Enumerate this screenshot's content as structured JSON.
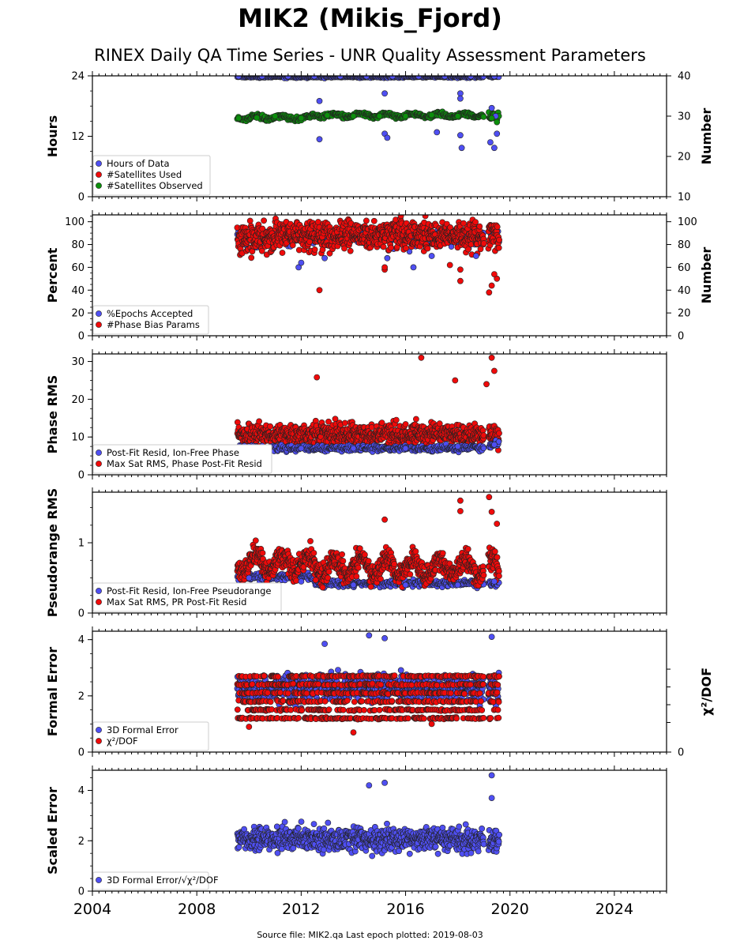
{
  "page": {
    "title": "MIK2 (Mikis_Fjord)",
    "subtitle": "RINEX Daily QA Time Series - UNR Quality Assessment Parameters",
    "footer": "Source file: MIK2.qa Last epoch plotted: 2019-08-03"
  },
  "colors": {
    "blue": "#4f4ff2",
    "red": "#ef0a0a",
    "green": "#0c8f0c",
    "edge": "#222222"
  },
  "chart_data": {
    "type": "scatter",
    "x_ticks": [
      2004,
      2008,
      2012,
      2016,
      2020,
      2024
    ],
    "xlim": [
      2004.0,
      2026.0
    ],
    "data_span": [
      2009.55,
      2019.59
    ],
    "panels": [
      {
        "ylabel": "Hours",
        "ylim": [
          0,
          24
        ],
        "yticks": [
          0,
          12,
          24
        ],
        "y2label": "Number",
        "y2lim": [
          10,
          40
        ],
        "y2ticks": [
          10,
          20,
          30,
          40
        ],
        "legend": [
          "Hours of Data",
          "#Satellites Used",
          "#Satellites Observed"
        ],
        "series": [
          {
            "name": "Hours of Data",
            "color": "blue",
            "axis": "y",
            "values": [
              [
                2009.6,
                23.9
              ],
              [
                2010.5,
                23.9
              ],
              [
                2011.5,
                23.9
              ],
              [
                2012.5,
                23.9
              ],
              [
                2013.5,
                23.9
              ],
              [
                2014.5,
                23.9
              ],
              [
                2015.5,
                23.9
              ],
              [
                2016.5,
                23.9
              ],
              [
                2017.5,
                23.9
              ],
              [
                2018.5,
                23.9
              ],
              [
                2019.4,
                23.9
              ],
              [
                2012.7,
                19.0
              ],
              [
                2012.7,
                11.4
              ],
              [
                2015.2,
                20.5
              ],
              [
                2015.2,
                12.5
              ],
              [
                2015.3,
                11.7
              ],
              [
                2017.2,
                12.8
              ],
              [
                2018.1,
                20.5
              ],
              [
                2018.1,
                19.5
              ],
              [
                2018.1,
                12.2
              ],
              [
                2018.15,
                9.7
              ],
              [
                2019.3,
                17.6
              ],
              [
                2019.25,
                10.8
              ],
              [
                2019.4,
                9.7
              ],
              [
                2019.5,
                12.5
              ],
              [
                2019.45,
                16.0
              ]
            ]
          },
          {
            "name": "#Satellites Used",
            "color": "red",
            "axis": "y2",
            "values": []
          },
          {
            "name": "#Satellites Observed",
            "color": "green",
            "axis": "y2",
            "values": [
              [
                2009.6,
                29.5
              ],
              [
                2010.3,
                29.6
              ],
              [
                2011.0,
                30.0
              ],
              [
                2012.0,
                29.5
              ],
              [
                2013.0,
                30.2
              ],
              [
                2014.0,
                30.0
              ],
              [
                2015.0,
                30.0
              ],
              [
                2016.0,
                30.0
              ],
              [
                2017.0,
                30.3
              ],
              [
                2018.0,
                30.0
              ],
              [
                2019.3,
                29.5
              ],
              [
                2019.5,
                28.5
              ]
            ]
          }
        ]
      },
      {
        "ylabel": "Percent",
        "ylim": [
          0,
          106
        ],
        "yticks": [
          0,
          20,
          40,
          60,
          80,
          100
        ],
        "y2label": "Number",
        "y2ticks": [
          0,
          20,
          40,
          60,
          80,
          100
        ],
        "legend": [
          "%Epochs Accepted",
          "#Phase Bias Params"
        ],
        "series": [
          {
            "name": "%Epochs Accepted",
            "color": "blue",
            "axis": "y",
            "values": [
              [
                2011.9,
                60
              ],
              [
                2012.0,
                64
              ],
              [
                2012.9,
                68
              ],
              [
                2015.3,
                68
              ],
              [
                2016.3,
                60
              ],
              [
                2017.0,
                70
              ],
              [
                2018.7,
                70
              ]
            ]
          },
          {
            "name": "#Phase Bias Params",
            "color": "red",
            "axis": "y2",
            "values": [
              [
                2012.7,
                40
              ],
              [
                2015.2,
                58
              ],
              [
                2015.2,
                60
              ],
              [
                2017.7,
                62
              ],
              [
                2018.1,
                58
              ],
              [
                2018.1,
                48
              ],
              [
                2019.2,
                38
              ],
              [
                2019.3,
                44
              ],
              [
                2019.5,
                50
              ],
              [
                2019.4,
                54
              ]
            ]
          }
        ]
      },
      {
        "ylabel": "Phase RMS",
        "ylim": [
          0,
          32
        ],
        "yticks": [
          0,
          10,
          20,
          30
        ],
        "legend": [
          "Post-Fit Resid, Ion-Free Phase",
          "Max Sat RMS, Phase Post-Fit Resid"
        ],
        "series": [
          {
            "name": "Post-Fit Resid, Ion-Free Phase",
            "color": "blue",
            "axis": "y",
            "values": [
              [
                2010,
                7.5
              ],
              [
                2012,
                7
              ],
              [
                2014,
                7
              ],
              [
                2016,
                7
              ],
              [
                2018,
                7.5
              ],
              [
                2019.4,
                8
              ]
            ]
          },
          {
            "name": "Max Sat RMS, Phase Post-Fit Resid",
            "color": "red",
            "axis": "y",
            "values": [
              [
                2012.6,
                25.8
              ],
              [
                2016.6,
                31
              ],
              [
                2017.9,
                25
              ],
              [
                2019.3,
                31
              ],
              [
                2019.4,
                27.5
              ],
              [
                2019.1,
                24
              ]
            ]
          }
        ]
      },
      {
        "ylabel": "Pseudorange RMS",
        "ylim": [
          0,
          1.72
        ],
        "yticks": [
          0,
          1
        ],
        "legend": [
          "Post-Fit Resid, Ion-Free Pseudorange",
          "Max Sat RMS, PR Post-Fit Resid"
        ],
        "series": [
          {
            "name": "Post-Fit Resid, Ion-Free Pseudorange",
            "color": "blue",
            "axis": "y",
            "values": [
              [
                2010,
                0.5
              ],
              [
                2012,
                0.45
              ],
              [
                2014,
                0.4
              ],
              [
                2016,
                0.4
              ],
              [
                2018,
                0.4
              ],
              [
                2019.4,
                0.45
              ]
            ]
          },
          {
            "name": "Max Sat RMS, PR Post-Fit Resid",
            "color": "red",
            "axis": "y",
            "values": [
              [
                2015.2,
                1.33
              ],
              [
                2018.1,
                1.6
              ],
              [
                2018.1,
                1.45
              ],
              [
                2019.2,
                1.65
              ],
              [
                2019.3,
                1.44
              ],
              [
                2019.5,
                1.27
              ]
            ]
          }
        ]
      },
      {
        "ylabel": "Formal Error",
        "ylim": [
          0,
          4.3
        ],
        "yticks": [
          0,
          2,
          4
        ],
        "y2label": "χ²/DOF",
        "y2ticks": [
          0
        ],
        "legend": [
          "3D Formal Error",
          "χ²/DOF"
        ],
        "series": [
          {
            "name": "3D Formal Error",
            "color": "blue",
            "axis": "y",
            "values": [
              [
                2014.6,
                4.15
              ],
              [
                2015.2,
                4.05
              ],
              [
                2012.9,
                3.85
              ],
              [
                2019.3,
                4.1
              ]
            ]
          },
          {
            "name": "χ²/DOF",
            "color": "red",
            "axis": "y",
            "values": [
              [
                2010.0,
                0.9
              ],
              [
                2014.0,
                0.7
              ],
              [
                2017.0,
                1.0
              ]
            ]
          }
        ]
      },
      {
        "ylabel": "Scaled Error",
        "ylim": [
          0,
          4.8
        ],
        "yticks": [
          0,
          2,
          4
        ],
        "legend": [
          "3D Formal Error/√χ²/DOF"
        ],
        "series": [
          {
            "name": "3D Formal Error/√χ²/DOF",
            "color": "blue",
            "axis": "y",
            "values": [
              [
                2014.6,
                4.2
              ],
              [
                2015.2,
                4.3
              ],
              [
                2019.3,
                4.6
              ],
              [
                2019.3,
                3.7
              ]
            ]
          }
        ]
      }
    ]
  }
}
